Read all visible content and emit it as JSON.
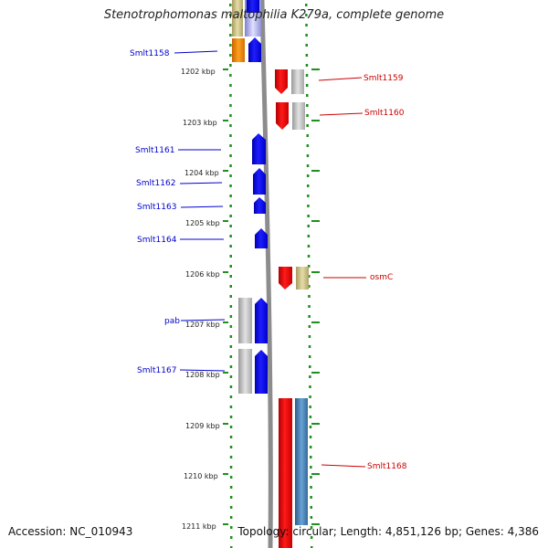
{
  "title": "Stenotrophomonas maltophilia K279a, complete genome",
  "footer": {
    "accession": "Accession: NC_010943",
    "summary": "Topology: circular; Length: 4,851,126 bp; Genes: 4,386"
  },
  "colors": {
    "dots": "#1f8f1f",
    "backbone": "#8c8c8c",
    "forward_label": "#0000cc",
    "reverse_label": "#cc0000"
  },
  "kbp_ticks": [
    "1202 kbp",
    "1203 kbp",
    "1204 kbp",
    "1205 kbp",
    "1206 kbp",
    "1207 kbp",
    "1208 kbp",
    "1209 kbp",
    "1210 kbp",
    "1211 kbp"
  ],
  "genes": [
    {
      "name": "Smlt1158",
      "strand": "forward",
      "color": "#0000ff",
      "companion_color": "#ee8800"
    },
    {
      "name": "Smlt1159",
      "strand": "reverse",
      "color": "#ff0000",
      "companion_color": "#c8c8c8"
    },
    {
      "name": "Smlt1160",
      "strand": "reverse",
      "color": "#ff0000",
      "companion_color": "#c8c8c8"
    },
    {
      "name": "Smlt1161",
      "strand": "forward",
      "color": "#0000ff"
    },
    {
      "name": "Smlt1162",
      "strand": "forward",
      "color": "#0000ff"
    },
    {
      "name": "Smlt1163",
      "strand": "forward",
      "color": "#0000ff"
    },
    {
      "name": "Smlt1164",
      "strand": "forward",
      "color": "#0000ff"
    },
    {
      "name": "osmC",
      "strand": "reverse",
      "color": "#ff0000",
      "companion_color": "#c8c090"
    },
    {
      "name": "pab",
      "strand": "forward",
      "color": "#0000ff",
      "companion_color": "#c8c8c8"
    },
    {
      "name": "Smlt1167",
      "strand": "forward",
      "color": "#0000ff",
      "companion_color": "#c8c8c8"
    },
    {
      "name": "Smlt1168",
      "strand": "reverse",
      "color": "#ff0000",
      "companion_color": "#4682b4"
    }
  ]
}
